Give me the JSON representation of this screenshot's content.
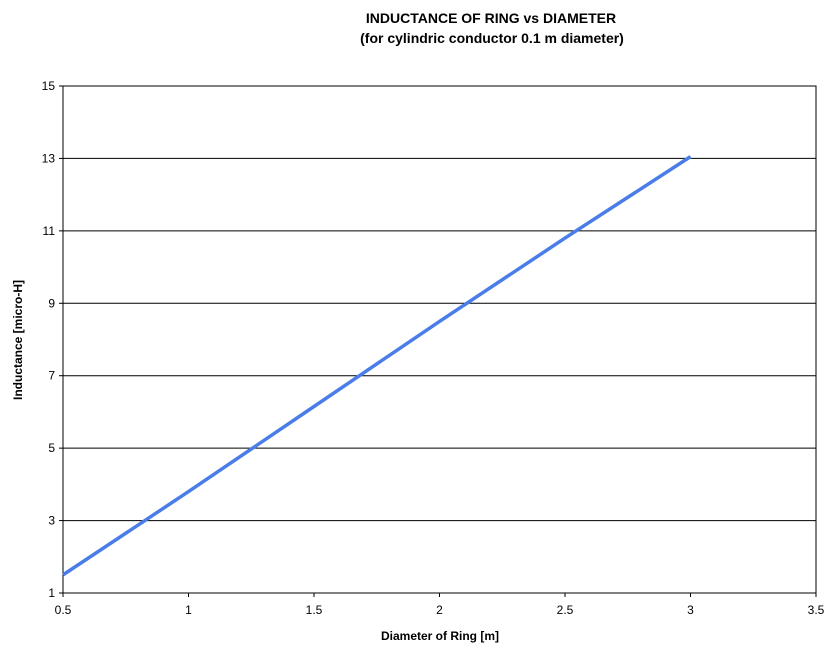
{
  "chart_data": {
    "type": "line",
    "title": "INDUCTANCE OF RING vs DIAMETER",
    "subtitle": "(for cylindric conductor 0.1 m diameter)",
    "xlabel": "Diameter of Ring [m]",
    "ylabel": "Inductance [micro-H]",
    "xlim": [
      0.5,
      3.5
    ],
    "ylim": [
      1,
      15
    ],
    "xticks": [
      0.5,
      1,
      1.5,
      2,
      2.5,
      3,
      3.5
    ],
    "xtick_labels": [
      "0.5",
      "1",
      "1.5",
      "2",
      "2.5",
      "3",
      "3.5"
    ],
    "yticks": [
      1,
      3,
      5,
      7,
      9,
      11,
      13,
      15
    ],
    "ytick_labels": [
      "1",
      "3",
      "5",
      "7",
      "9",
      "11",
      "13",
      "15"
    ],
    "grid": "horizontal",
    "legend": "none",
    "series": [
      {
        "color": "#4a7de8",
        "x": [
          0.5,
          1.0,
          1.5,
          2.0,
          2.5,
          3.0
        ],
        "y": [
          1.5,
          3.8,
          6.15,
          8.5,
          10.8,
          13.05
        ]
      }
    ]
  }
}
